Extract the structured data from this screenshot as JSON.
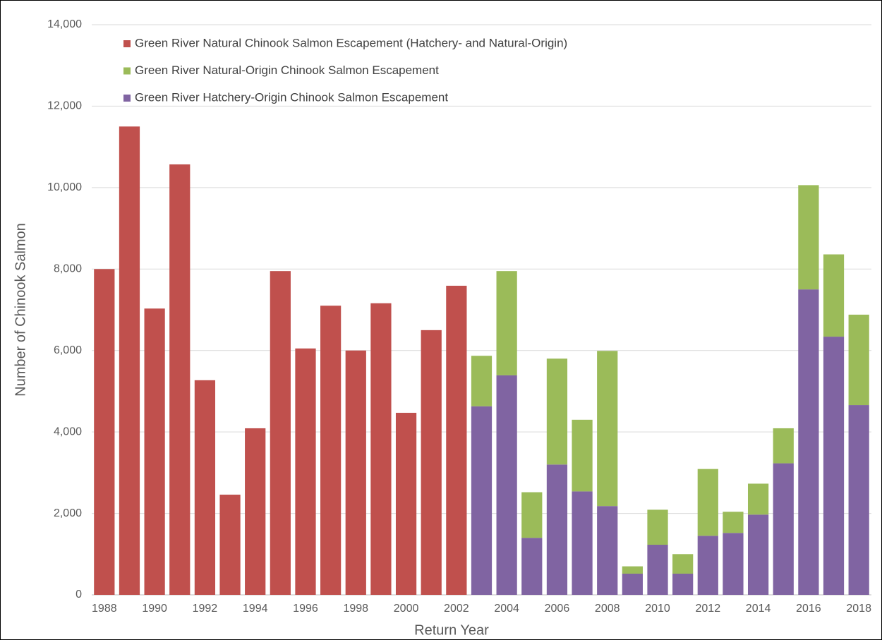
{
  "chart_data": {
    "type": "bar",
    "stacked": true,
    "xlabel": "Return Year",
    "ylabel": "Number of Chinook Salmon",
    "categories": [
      "1988",
      null,
      "1990",
      null,
      "1992",
      null,
      "1994",
      null,
      "1996",
      null,
      "1998",
      null,
      "2000",
      null,
      "2002",
      null,
      "2004",
      null,
      "2006",
      null,
      "2008",
      null,
      "2010",
      null,
      "2012",
      null,
      "2014",
      null,
      "2016",
      null,
      "2018"
    ],
    "series": [
      {
        "name": "Green River Natural Chinook Salmon Escapement (Hatchery- and Natural-Origin)",
        "color": "#c0504d",
        "values": [
          8000,
          11500,
          7030,
          10570,
          5270,
          2460,
          4090,
          7950,
          6050,
          7100,
          6000,
          7160,
          4470,
          6500,
          7590,
          null,
          null,
          null,
          null,
          null,
          null,
          null,
          null,
          null,
          null,
          null,
          null,
          null,
          null,
          null,
          null
        ]
      },
      {
        "name": "Green River Natural-Origin Chinook Salmon Escapement",
        "color": "#9bbb59",
        "values": [
          null,
          null,
          null,
          null,
          null,
          null,
          null,
          null,
          null,
          null,
          null,
          null,
          null,
          null,
          null,
          1240,
          2560,
          1120,
          2600,
          1760,
          3810,
          180,
          860,
          480,
          1640,
          520,
          760,
          860,
          2560,
          2020,
          2220
        ]
      },
      {
        "name": "Green River Hatchery-Origin Chinook Salmon Escapement",
        "color": "#8064a2",
        "values": [
          null,
          null,
          null,
          null,
          null,
          null,
          null,
          null,
          null,
          null,
          null,
          null,
          null,
          null,
          null,
          4630,
          5390,
          1400,
          3200,
          2540,
          2180,
          520,
          1230,
          520,
          1450,
          1520,
          1970,
          3230,
          7500,
          6340,
          4660
        ]
      }
    ],
    "ylim": [
      0,
      14000
    ],
    "yticks": [
      0,
      {
        "value": 2000,
        "label": "2,000"
      },
      {
        "value": 4000,
        "label": "4,000"
      },
      {
        "value": 6000,
        "label": "6,000"
      },
      {
        "value": 8000,
        "label": "8,000"
      },
      {
        "value": 10000,
        "label": "10,000"
      },
      {
        "value": 12000,
        "label": "12,000"
      },
      {
        "value": 14000,
        "label": "14,000"
      }
    ],
    "grid": true,
    "legend": "top-left"
  }
}
